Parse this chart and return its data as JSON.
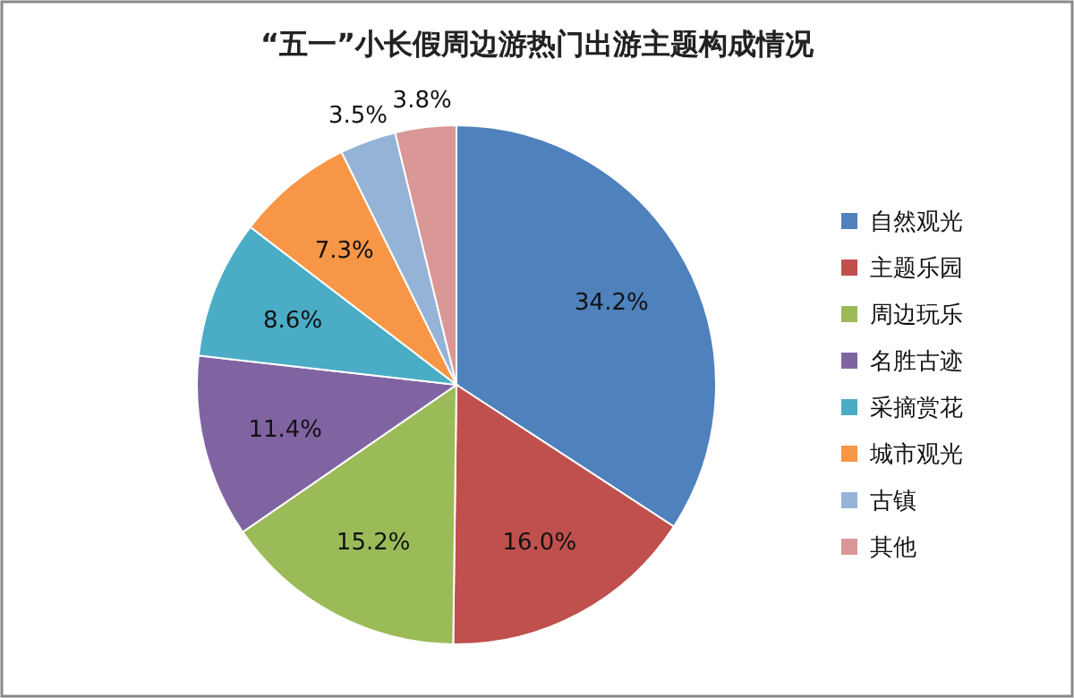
{
  "chart_data": {
    "type": "pie",
    "title": "“五一”小长假周边游热门出游主题构成情况",
    "categories": [
      "自然观光",
      "主题乐园",
      "周边玩乐",
      "名胜古迹",
      "采摘赏花",
      "城市观光",
      "古镇",
      "其他"
    ],
    "values": [
      34.2,
      16.0,
      15.2,
      11.4,
      8.6,
      7.3,
      3.5,
      3.8
    ],
    "colors": [
      "#4f81bd",
      "#c0504d",
      "#9bbb59",
      "#8064a2",
      "#4bacc6",
      "#f79646",
      "#95b3d7",
      "#d99795"
    ],
    "value_labels": [
      "34.2%",
      "16.0%",
      "15.2%",
      "11.4%",
      "8.6%",
      "7.3%",
      "3.5%",
      "3.8%"
    ],
    "legend": "right"
  }
}
